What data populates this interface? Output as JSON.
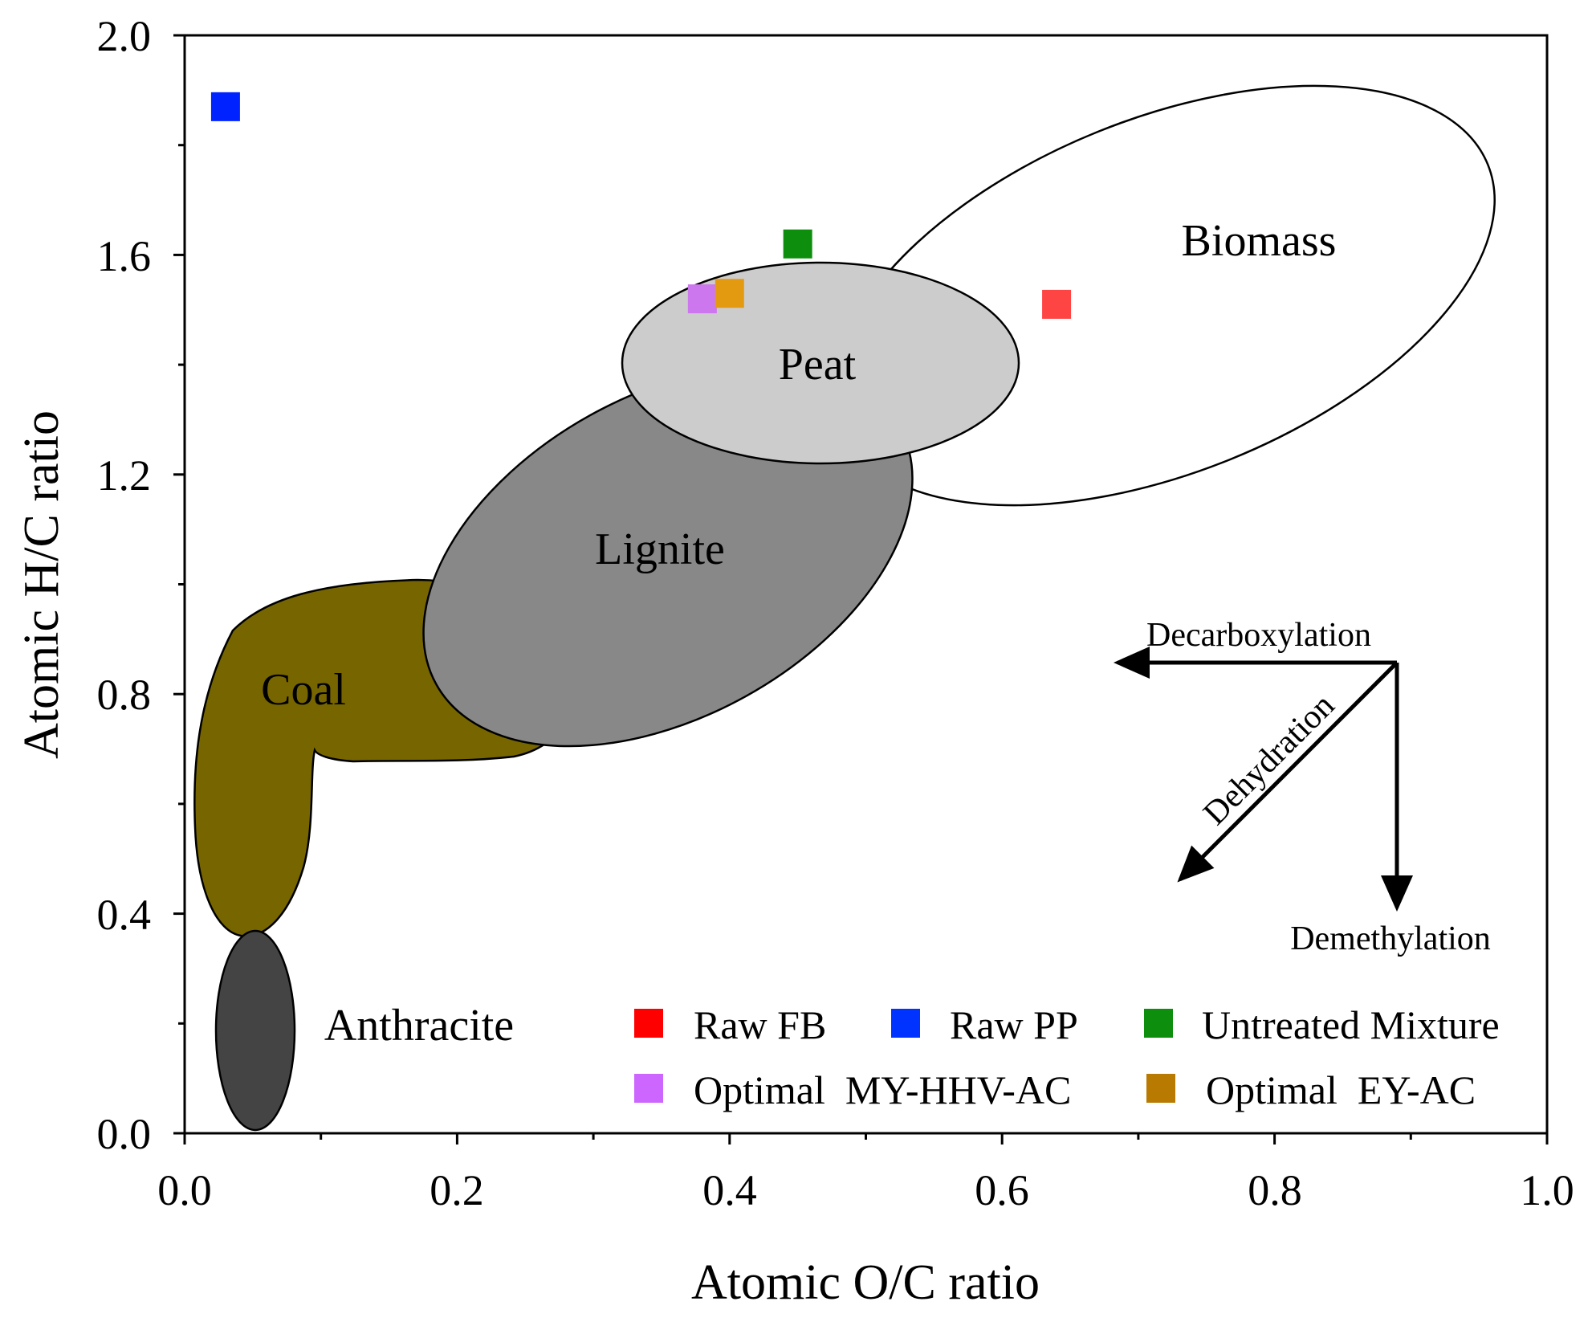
{
  "chart_data": {
    "type": "scatter",
    "xlabel": "Atomic O/C ratio",
    "ylabel": "Atomic H/C ratio",
    "xlim": [
      0.0,
      1.0
    ],
    "ylim": [
      0.0,
      2.0
    ],
    "x_ticks": [
      "0.0",
      "0.2",
      "0.4",
      "0.6",
      "0.8",
      "1.0"
    ],
    "y_ticks": [
      "0.0",
      "0.4",
      "0.8",
      "1.2",
      "1.6",
      "2.0"
    ],
    "series": [
      {
        "name": "Raw FB",
        "x": 0.64,
        "y": 1.51,
        "color": "#ff4444",
        "legend_color": "#ff0000"
      },
      {
        "name": "Raw PP",
        "x": 0.03,
        "y": 1.87,
        "color": "#0022ff",
        "legend_color": "#0033ff"
      },
      {
        "name": "Untreated Mixture",
        "x": 0.45,
        "y": 1.62,
        "color": "#0d8f0d",
        "legend_color": "#0d8f0d"
      },
      {
        "name": "Optimal  MY-HHV-AC",
        "x": 0.38,
        "y": 1.52,
        "color": "#cc77ee",
        "legend_color": "#cc66ff"
      },
      {
        "name": "Optimal  EY-AC",
        "x": 0.4,
        "y": 1.53,
        "color": "#e49a10",
        "legend_color": "#b87a00"
      }
    ],
    "regions": [
      {
        "name": "Biomass",
        "color": "#ffffff"
      },
      {
        "name": "Peat",
        "color": "#cccccc"
      },
      {
        "name": "Lignite",
        "color": "#888888"
      },
      {
        "name": "Coal",
        "color": "#776600"
      },
      {
        "name": "Anthracite",
        "color": "#444444"
      }
    ],
    "annotations": [
      "Decarboxylation",
      "Dehydration",
      "Demethylation"
    ],
    "legend_position": "bottom-right",
    "grid": false
  }
}
